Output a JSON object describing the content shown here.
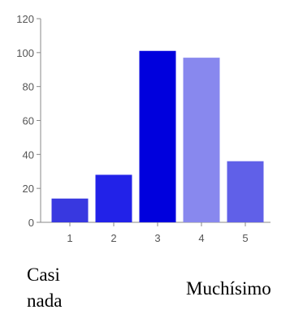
{
  "chart_data": {
    "type": "bar",
    "categories": [
      "1",
      "2",
      "3",
      "4",
      "5"
    ],
    "values": [
      14,
      28,
      101,
      97,
      36
    ],
    "colors": [
      "#3838e0",
      "#2222e8",
      "#0000dd",
      "#8888ee",
      "#6060e8"
    ],
    "title": "",
    "xlabel": "",
    "ylabel": "",
    "ylim": [
      0,
      120
    ],
    "yticks": [
      0,
      20,
      40,
      60,
      80,
      100,
      120
    ],
    "grid": false,
    "legend": "none"
  },
  "captions": {
    "low": "Casi nada",
    "high": "Muchísimo"
  }
}
